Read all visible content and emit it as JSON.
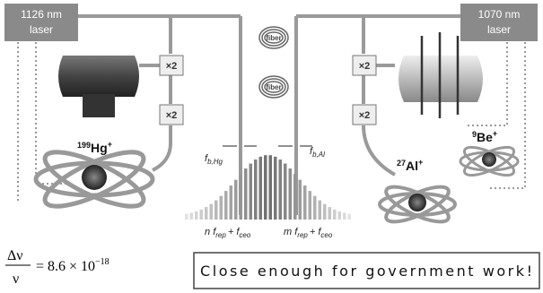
{
  "lasers": [
    {
      "wavelength": "1126 nm",
      "label": "laser"
    },
    {
      "wavelength": "1070 nm",
      "label": "laser"
    }
  ],
  "doublers": [
    "×2",
    "×2",
    "×2",
    "×2"
  ],
  "fibers": [
    "fiber",
    "fiber"
  ],
  "ions": [
    {
      "mass": "199",
      "symbol": "Hg",
      "charge": "+"
    },
    {
      "mass": "27",
      "symbol": "Al",
      "charge": "+"
    },
    {
      "mass": "9",
      "symbol": "Be",
      "charge": "+"
    }
  ],
  "beat_notes": [
    {
      "symbol": "f",
      "subscript": "b,Hg"
    },
    {
      "symbol": "f",
      "subscript": "b,Al"
    }
  ],
  "comb_modes": [
    {
      "index": "n",
      "rep": "f",
      "rep_sub": "rep",
      "plus": "+",
      "ceo": "f",
      "ceo_sub": "ceo"
    },
    {
      "index": "m",
      "rep": "f",
      "rep_sub": "rep",
      "plus": "+",
      "ceo": "f",
      "ceo_sub": "ceo"
    }
  ],
  "equation": {
    "numerator": "Δν",
    "denominator": "ν",
    "rhs": "= 8.6 × 10",
    "exponent": "−18"
  },
  "caption": "Close enough for government work!"
}
